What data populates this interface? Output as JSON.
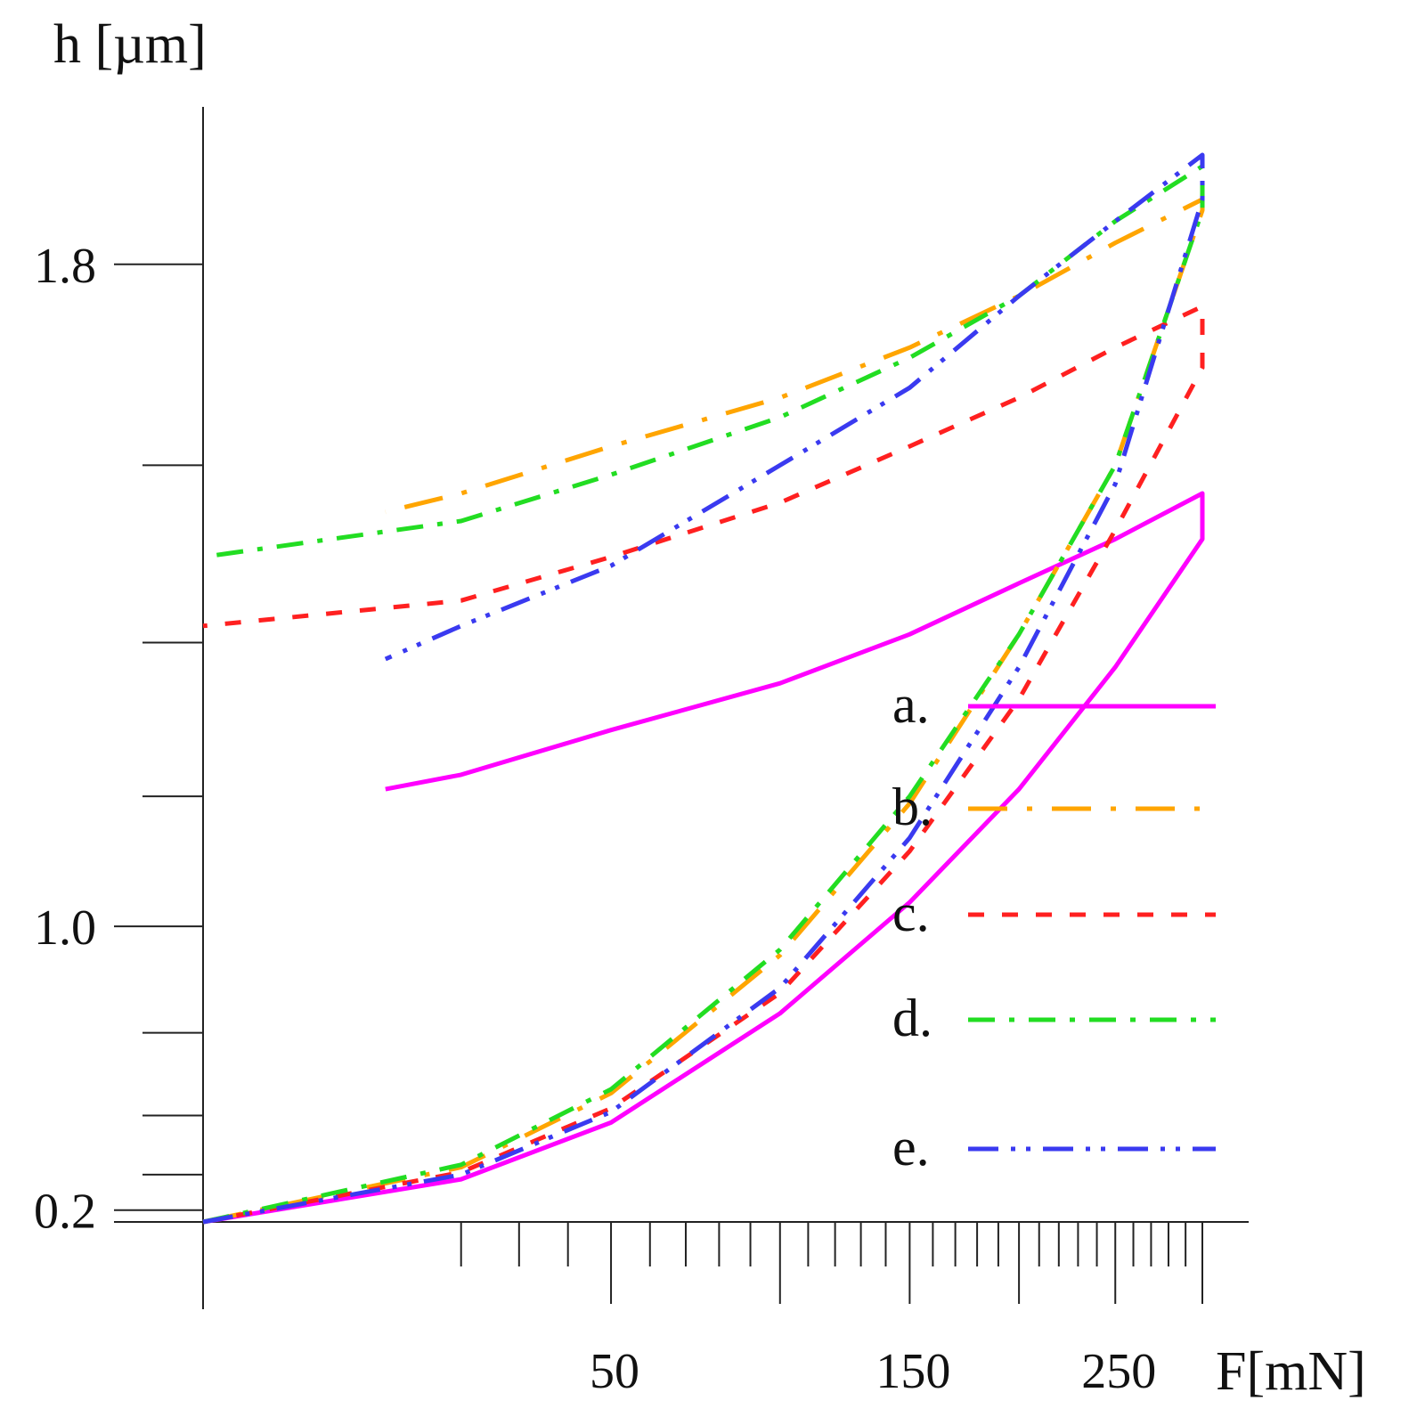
{
  "chart_data": {
    "type": "line",
    "title": "",
    "xlabel": "F[mN]",
    "ylabel": "h [µm]",
    "x_axis": {
      "scale": "sqrt",
      "range": [
        0,
        300
      ],
      "tick_labels": [
        "50",
        "150",
        "250"
      ],
      "tick_values": [
        50,
        150,
        250
      ]
    },
    "y_axis": {
      "scale": "quadratic",
      "range": [
        0,
        1.94
      ],
      "tick_labels": [
        "0.2",
        "1.0",
        "1.8"
      ],
      "tick_values": [
        0.2,
        1.0,
        1.8
      ]
    },
    "legend": {
      "placement": "bottom-right",
      "entries": [
        "a.",
        "b.",
        "c.",
        "d.",
        "e."
      ]
    },
    "series": [
      {
        "name": "a.",
        "color": "#ff00ff",
        "dash": "solid",
        "loading": {
          "F": [
            0,
            20,
            50,
            100,
            150,
            200,
            250,
            300
          ],
          "h": [
            0,
            0.38,
            0.58,
            0.84,
            1.04,
            1.21,
            1.37,
            1.52
          ]
        },
        "unloading": {
          "F": [
            300,
            250,
            200,
            150,
            100,
            50,
            20,
            10
          ],
          "h": [
            1.57,
            1.52,
            1.47,
            1.41,
            1.35,
            1.29,
            1.23,
            1.21
          ]
        }
      },
      {
        "name": "b.",
        "color": "#ffa500",
        "dash": "long-dash-dot",
        "loading": {
          "F": [
            0,
            20,
            50,
            100,
            150,
            200,
            250,
            300
          ],
          "h": [
            0,
            0.43,
            0.66,
            0.95,
            1.19,
            1.41,
            1.6,
            1.85
          ]
        },
        "unloading": {
          "F": [
            300,
            250,
            200,
            150,
            100,
            50,
            20,
            10
          ],
          "h": [
            1.86,
            1.82,
            1.77,
            1.72,
            1.67,
            1.62,
            1.57,
            1.55
          ]
        }
      },
      {
        "name": "c.",
        "color": "#ff2020",
        "dash": "short-dash",
        "loading": {
          "F": [
            0,
            20,
            50,
            100,
            150,
            200,
            250,
            300
          ],
          "h": [
            0,
            0.41,
            0.62,
            0.88,
            1.12,
            1.33,
            1.53,
            1.7
          ]
        },
        "unloading": {
          "F": [
            300,
            250,
            200,
            150,
            100,
            50,
            20,
            0
          ],
          "h": [
            1.76,
            1.72,
            1.67,
            1.62,
            1.56,
            1.5,
            1.45,
            1.42
          ]
        }
      },
      {
        "name": "d.",
        "color": "#22dd22",
        "dash": "dash-dot",
        "loading": {
          "F": [
            0,
            20,
            50,
            100,
            150,
            200,
            250,
            300
          ],
          "h": [
            0,
            0.44,
            0.67,
            0.96,
            1.2,
            1.41,
            1.6,
            1.85
          ]
        },
        "unloading": {
          "F": [
            300,
            250,
            200,
            150,
            100,
            50,
            20,
            0
          ],
          "h": [
            1.89,
            1.84,
            1.77,
            1.71,
            1.65,
            1.59,
            1.54,
            1.5
          ]
        }
      },
      {
        "name": "e.",
        "color": "#3a3af0",
        "dash": "dash-dot-dot",
        "loading": {
          "F": [
            0,
            20,
            50,
            100,
            150,
            200,
            250,
            300
          ],
          "h": [
            0,
            0.4,
            0.61,
            0.89,
            1.14,
            1.37,
            1.58,
            1.86
          ]
        },
        "unloading": {
          "F": [
            300,
            250,
            200,
            150,
            100,
            50,
            20,
            10
          ],
          "h": [
            1.9,
            1.84,
            1.77,
            1.68,
            1.6,
            1.49,
            1.42,
            1.38
          ]
        }
      }
    ]
  }
}
